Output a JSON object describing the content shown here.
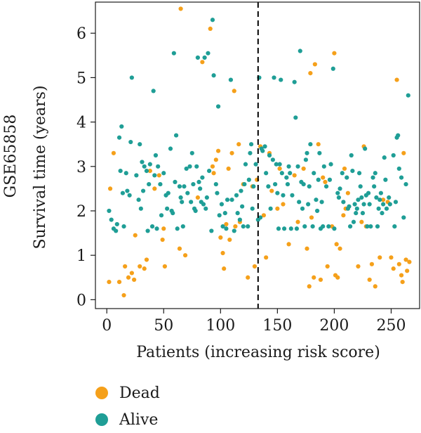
{
  "chart_data": {
    "type": "scatter",
    "dataset_label": "GSE65858",
    "ylabel": "Survival time (years)",
    "xlabel": "Patients (increasing risk score)",
    "xlim": [
      -10,
      275
    ],
    "ylim": [
      -0.2,
      6.7
    ],
    "xticks": [
      0,
      50,
      100,
      150,
      200,
      250
    ],
    "yticks": [
      0,
      1,
      2,
      3,
      4,
      5,
      6
    ],
    "cutoff_x": 133,
    "colors": {
      "Dead": "#f5a01a",
      "Alive": "#1f9e96",
      "cutoff": "#000000"
    },
    "legend": [
      {
        "name": "Dead",
        "color": "#f5a01a"
      },
      {
        "name": "Alive",
        "color": "#1f9e96"
      }
    ],
    "series": [
      {
        "name": "Dead",
        "points": [
          [
            2,
            0.4
          ],
          [
            3,
            2.5
          ],
          [
            6,
            3.3
          ],
          [
            11,
            0.4
          ],
          [
            15,
            0.1
          ],
          [
            16,
            0.75
          ],
          [
            19,
            0.5
          ],
          [
            22,
            0.6
          ],
          [
            24,
            0.45
          ],
          [
            25,
            1.45
          ],
          [
            29,
            0.75
          ],
          [
            33,
            0.7
          ],
          [
            35,
            0.9
          ],
          [
            38,
            2.9
          ],
          [
            42,
            2.5
          ],
          [
            46,
            2.8
          ],
          [
            49,
            1.35
          ],
          [
            50,
            1.6
          ],
          [
            51,
            0.75
          ],
          [
            64,
            1.15
          ],
          [
            65,
            6.55
          ],
          [
            69,
            1.0
          ],
          [
            80,
            2.3
          ],
          [
            84,
            5.35
          ],
          [
            91,
            6.1
          ],
          [
            93,
            3.0
          ],
          [
            94,
            2.85
          ],
          [
            96,
            3.15
          ],
          [
            98,
            3.35
          ],
          [
            100,
            1.4
          ],
          [
            102,
            1.05
          ],
          [
            103,
            0.7
          ],
          [
            105,
            1.7
          ],
          [
            107,
            2.95
          ],
          [
            108,
            1.35
          ],
          [
            110,
            3.3
          ],
          [
            112,
            4.7
          ],
          [
            113,
            1.65
          ],
          [
            116,
            3.5
          ],
          [
            117,
            1.75
          ],
          [
            120,
            2.6
          ],
          [
            124,
            0.5
          ],
          [
            128,
            2.55
          ],
          [
            130,
            0.75
          ],
          [
            132,
            2.7
          ],
          [
            135,
            3.45
          ],
          [
            138,
            1.9
          ],
          [
            140,
            0.95
          ],
          [
            143,
            3.3
          ],
          [
            145,
            2.45
          ],
          [
            150,
            2.05
          ],
          [
            152,
            2.95
          ],
          [
            155,
            2.15
          ],
          [
            160,
            1.25
          ],
          [
            165,
            2.8
          ],
          [
            168,
            1.75
          ],
          [
            173,
            2.95
          ],
          [
            176,
            1.15
          ],
          [
            178,
            0.3
          ],
          [
            179,
            5.1
          ],
          [
            180,
            1.85
          ],
          [
            182,
            0.5
          ],
          [
            183,
            5.3
          ],
          [
            186,
            3.5
          ],
          [
            188,
            0.45
          ],
          [
            190,
            2.75
          ],
          [
            192,
            2.65
          ],
          [
            194,
            0.75
          ],
          [
            198,
            1.65
          ],
          [
            200,
            5.55
          ],
          [
            201,
            0.55
          ],
          [
            202,
            1.25
          ],
          [
            203,
            0.5
          ],
          [
            205,
            1.15
          ],
          [
            208,
            1.9
          ],
          [
            209,
            2.95
          ],
          [
            210,
            2.05
          ],
          [
            212,
            2.4
          ],
          [
            221,
            0.75
          ],
          [
            224,
            1.75
          ],
          [
            226,
            3.45
          ],
          [
            228,
            1.65
          ],
          [
            231,
            0.45
          ],
          [
            233,
            0.8
          ],
          [
            236,
            0.3
          ],
          [
            240,
            0.95
          ],
          [
            243,
            2.25
          ],
          [
            247,
            2.2
          ],
          [
            250,
            0.95
          ],
          [
            252,
            0.7
          ],
          [
            255,
            4.95
          ],
          [
            257,
            0.8
          ],
          [
            259,
            0.55
          ],
          [
            260,
            0.4
          ],
          [
            261,
            3.3
          ],
          [
            263,
            0.9
          ],
          [
            264,
            0.65
          ],
          [
            266,
            0.85
          ]
        ]
      },
      {
        "name": "Alive",
        "points": [
          [
            2,
            2.0
          ],
          [
            4,
            1.8
          ],
          [
            6,
            1.6
          ],
          [
            8,
            1.55
          ],
          [
            9,
            1.7
          ],
          [
            11,
            3.65
          ],
          [
            12,
            2.9
          ],
          [
            13,
            3.9
          ],
          [
            14,
            2.4
          ],
          [
            15,
            1.65
          ],
          [
            17,
            2.85
          ],
          [
            18,
            2.45
          ],
          [
            20,
            2.35
          ],
          [
            21,
            3.55
          ],
          [
            22,
            5.0
          ],
          [
            26,
            2.8
          ],
          [
            28,
            2.25
          ],
          [
            29,
            3.5
          ],
          [
            30,
            2.05
          ],
          [
            31,
            3.1
          ],
          [
            32,
            2.45
          ],
          [
            33,
            3.0
          ],
          [
            35,
            2.9
          ],
          [
            36,
            1.55
          ],
          [
            37,
            2.6
          ],
          [
            38,
            3.05
          ],
          [
            40,
            1.65
          ],
          [
            41,
            4.7
          ],
          [
            42,
            2.8
          ],
          [
            43,
            3.25
          ],
          [
            44,
            1.6
          ],
          [
            45,
            3.0
          ],
          [
            47,
            2.6
          ],
          [
            48,
            1.9
          ],
          [
            50,
            2.85
          ],
          [
            52,
            2.35
          ],
          [
            53,
            2.05
          ],
          [
            54,
            2.4
          ],
          [
            56,
            3.4
          ],
          [
            57,
            2.0
          ],
          [
            58,
            1.95
          ],
          [
            59,
            5.55
          ],
          [
            60,
            2.65
          ],
          [
            61,
            3.7
          ],
          [
            62,
            1.6
          ],
          [
            64,
            2.55
          ],
          [
            65,
            2.3
          ],
          [
            66,
            2.2
          ],
          [
            67,
            1.65
          ],
          [
            68,
            2.55
          ],
          [
            70,
            2.95
          ],
          [
            71,
            2.4
          ],
          [
            73,
            3.0
          ],
          [
            74,
            2.2
          ],
          [
            75,
            3.3
          ],
          [
            76,
            2.6
          ],
          [
            77,
            2.05
          ],
          [
            78,
            2.0
          ],
          [
            79,
            3.0
          ],
          [
            80,
            5.45
          ],
          [
            81,
            2.65
          ],
          [
            82,
            2.5
          ],
          [
            83,
            2.2
          ],
          [
            84,
            2.75
          ],
          [
            85,
            2.15
          ],
          [
            86,
            5.45
          ],
          [
            87,
            2.05
          ],
          [
            88,
            2.3
          ],
          [
            89,
            5.55
          ],
          [
            90,
            2.9
          ],
          [
            92,
            1.55
          ],
          [
            93,
            6.3
          ],
          [
            94,
            5.05
          ],
          [
            96,
            2.6
          ],
          [
            97,
            2.4
          ],
          [
            98,
            4.35
          ],
          [
            99,
            1.9
          ],
          [
            101,
            2.15
          ],
          [
            102,
            1.65
          ],
          [
            104,
            1.95
          ],
          [
            105,
            1.6
          ],
          [
            106,
            2.25
          ],
          [
            109,
            4.95
          ],
          [
            110,
            2.25
          ],
          [
            112,
            1.55
          ],
          [
            114,
            2.35
          ],
          [
            115,
            1.95
          ],
          [
            117,
            1.8
          ],
          [
            118,
            2.45
          ],
          [
            119,
            2.1
          ],
          [
            120,
            1.65
          ],
          [
            121,
            2.6
          ],
          [
            122,
            3.05
          ],
          [
            124,
            1.65
          ],
          [
            125,
            2.7
          ],
          [
            126,
            3.3
          ],
          [
            127,
            3.5
          ],
          [
            128,
            2.05
          ],
          [
            129,
            2.55
          ],
          [
            131,
            3.05
          ],
          [
            133,
            1.8
          ],
          [
            134,
            5.0
          ],
          [
            135,
            1.85
          ],
          [
            136,
            3.4
          ],
          [
            137,
            3.35
          ],
          [
            139,
            3.45
          ],
          [
            140,
            2.85
          ],
          [
            142,
            2.55
          ],
          [
            143,
            3.25
          ],
          [
            144,
            2.05
          ],
          [
            146,
            3.15
          ],
          [
            147,
            5.0
          ],
          [
            148,
            2.6
          ],
          [
            149,
            3.05
          ],
          [
            150,
            2.4
          ],
          [
            151,
            1.6
          ],
          [
            152,
            3.05
          ],
          [
            153,
            4.95
          ],
          [
            154,
            2.85
          ],
          [
            155,
            2.35
          ],
          [
            156,
            1.6
          ],
          [
            158,
            2.75
          ],
          [
            159,
            2.6
          ],
          [
            160,
            3.0
          ],
          [
            161,
            2.85
          ],
          [
            162,
            1.6
          ],
          [
            163,
            2.35
          ],
          [
            165,
            4.9
          ],
          [
            166,
            4.1
          ],
          [
            167,
            1.6
          ],
          [
            168,
            3.0
          ],
          [
            169,
            2.2
          ],
          [
            170,
            5.6
          ],
          [
            171,
            2.65
          ],
          [
            172,
            2.05
          ],
          [
            173,
            2.6
          ],
          [
            174,
            1.65
          ],
          [
            175,
            3.15
          ],
          [
            176,
            3.3
          ],
          [
            177,
            2.15
          ],
          [
            178,
            2.55
          ],
          [
            179,
            3.5
          ],
          [
            181,
            1.65
          ],
          [
            182,
            2.85
          ],
          [
            184,
            2.25
          ],
          [
            185,
            2.0
          ],
          [
            186,
            2.7
          ],
          [
            187,
            3.3
          ],
          [
            188,
            1.6
          ],
          [
            189,
            2.2
          ],
          [
            190,
            1.65
          ],
          [
            191,
            3.0
          ],
          [
            193,
            2.55
          ],
          [
            195,
            1.65
          ],
          [
            196,
            2.7
          ],
          [
            197,
            3.05
          ],
          [
            199,
            5.2
          ],
          [
            200,
            1.6
          ],
          [
            203,
            2.4
          ],
          [
            204,
            2.3
          ],
          [
            205,
            2.5
          ],
          [
            207,
            2.85
          ],
          [
            208,
            2.2
          ],
          [
            211,
            2.75
          ],
          [
            212,
            2.05
          ],
          [
            213,
            2.1
          ],
          [
            214,
            1.65
          ],
          [
            215,
            3.25
          ],
          [
            216,
            2.9
          ],
          [
            217,
            1.75
          ],
          [
            218,
            2.15
          ],
          [
            219,
            1.95
          ],
          [
            220,
            2.05
          ],
          [
            221,
            2.25
          ],
          [
            222,
            2.85
          ],
          [
            223,
            2.55
          ],
          [
            224,
            2.3
          ],
          [
            225,
            1.95
          ],
          [
            226,
            2.15
          ],
          [
            227,
            3.4
          ],
          [
            228,
            2.35
          ],
          [
            229,
            1.65
          ],
          [
            230,
            2.4
          ],
          [
            231,
            2.15
          ],
          [
            232,
            1.65
          ],
          [
            234,
            2.75
          ],
          [
            235,
            2.55
          ],
          [
            236,
            2.85
          ],
          [
            237,
            2.3
          ],
          [
            238,
            1.65
          ],
          [
            239,
            2.05
          ],
          [
            240,
            2.25
          ],
          [
            241,
            2.4
          ],
          [
            242,
            1.95
          ],
          [
            243,
            2.15
          ],
          [
            244,
            3.2
          ],
          [
            245,
            2.7
          ],
          [
            246,
            2.05
          ],
          [
            248,
            2.3
          ],
          [
            249,
            2.15
          ],
          [
            252,
            3.25
          ],
          [
            253,
            1.65
          ],
          [
            254,
            2.2
          ],
          [
            255,
            3.65
          ],
          [
            256,
            3.7
          ],
          [
            257,
            2.95
          ],
          [
            259,
            2.75
          ],
          [
            261,
            1.85
          ],
          [
            263,
            2.6
          ],
          [
            265,
            4.6
          ]
        ]
      }
    ]
  }
}
